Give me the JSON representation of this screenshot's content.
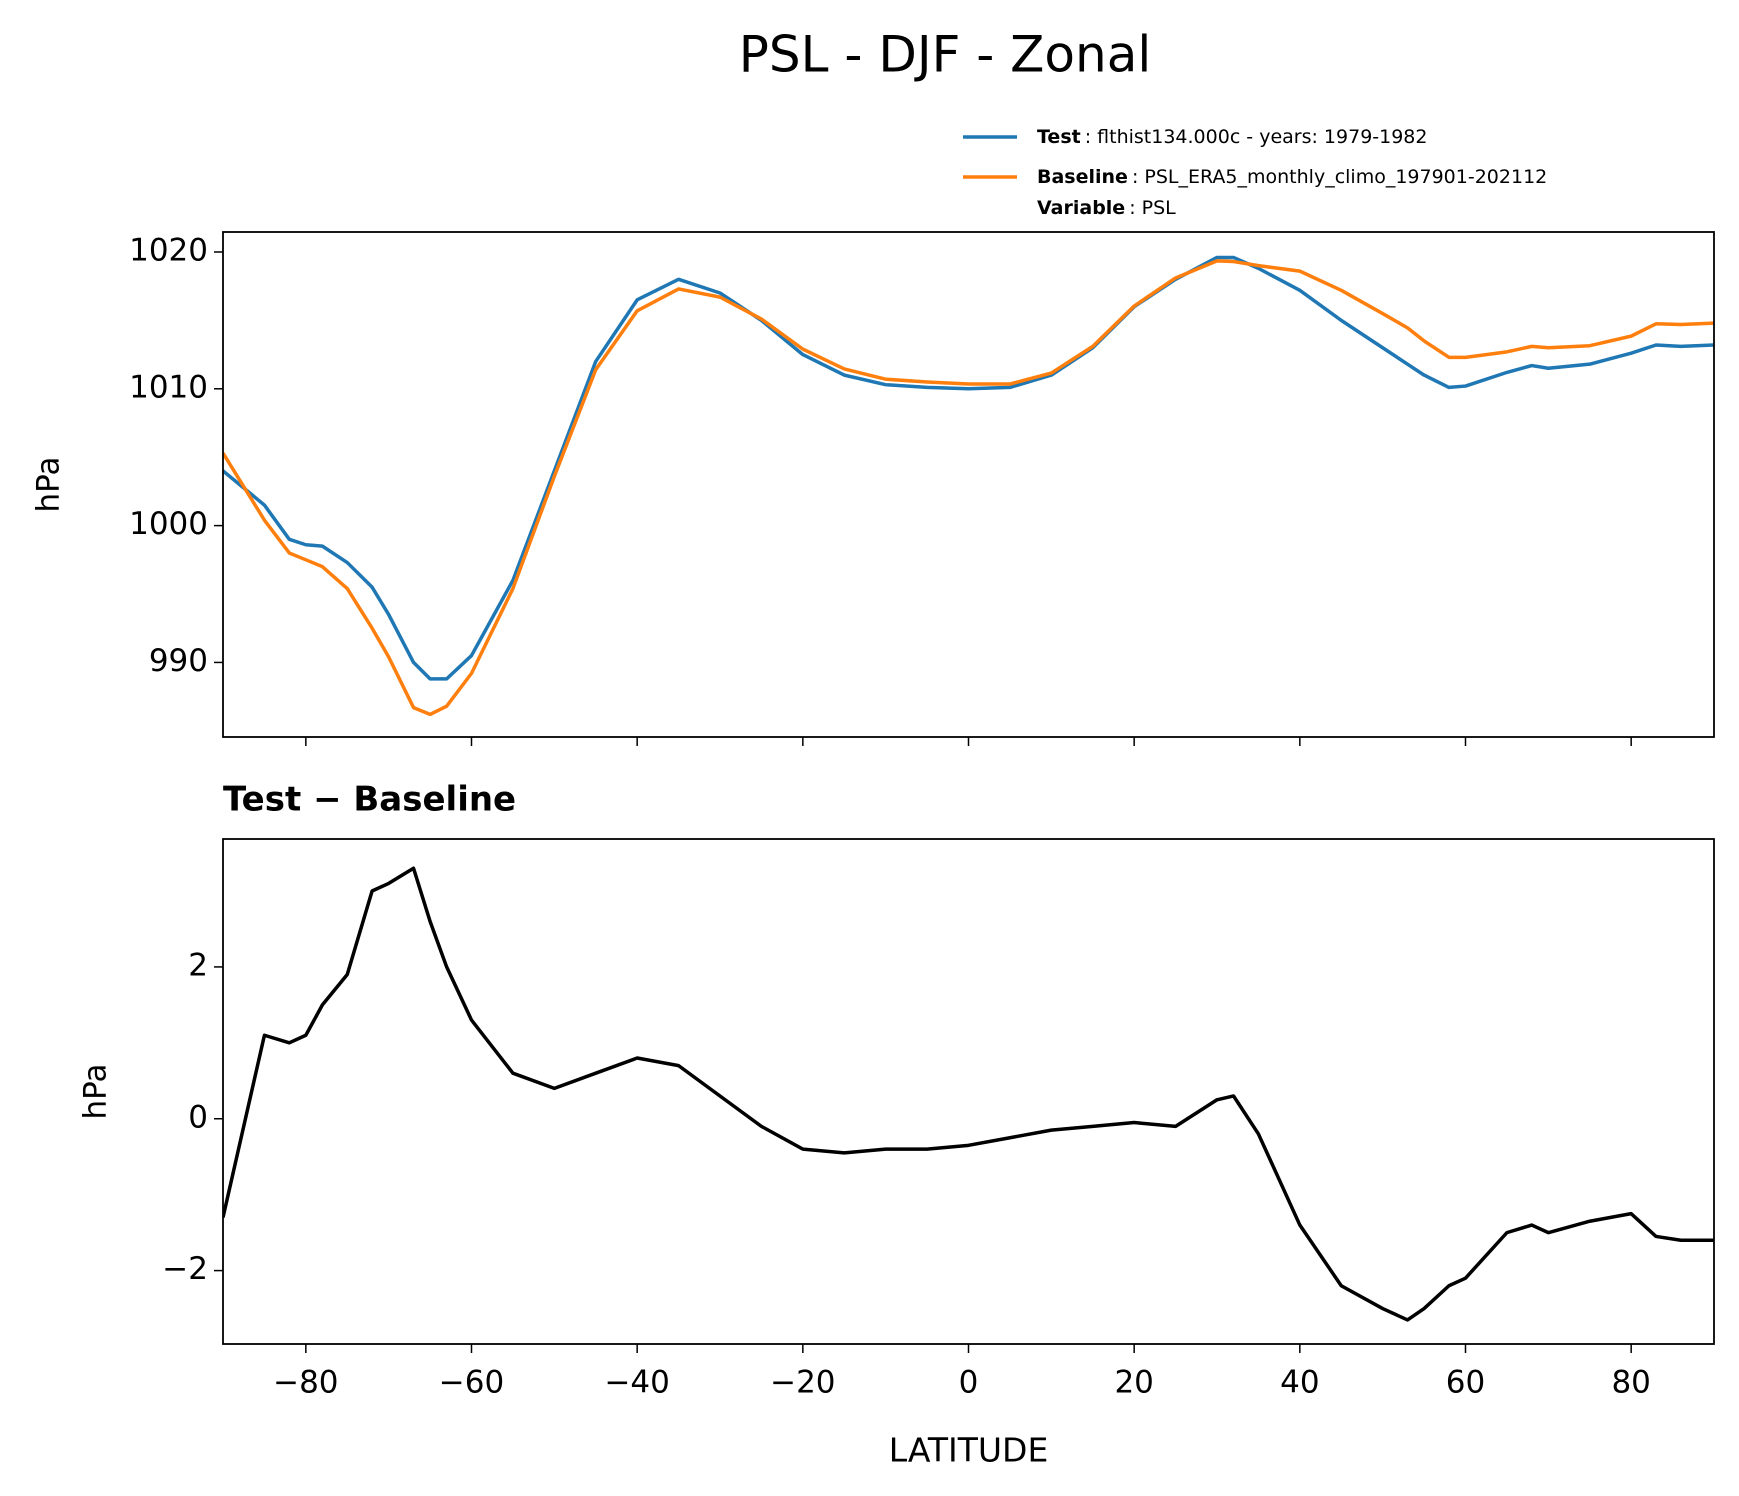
{
  "chart_data": [
    {
      "type": "line",
      "title": "PSL - DJF - Zonal",
      "ylabel": "hPa",
      "x": [
        -90,
        -85,
        -82,
        -80,
        -78,
        -75,
        -72,
        -70,
        -67,
        -65,
        -63,
        -60,
        -55,
        -50,
        -45,
        -40,
        -35,
        -30,
        -25,
        -20,
        -15,
        -10,
        -5,
        0,
        5,
        10,
        15,
        20,
        25,
        30,
        32,
        35,
        40,
        45,
        50,
        53,
        55,
        58,
        60,
        65,
        68,
        70,
        75,
        80,
        83,
        86,
        90
      ],
      "series": [
        {
          "name": "Test",
          "description": ": flthist134.000c - years: 1979-1982",
          "color": "#1f77b4",
          "values": [
            1004,
            1001.5,
            999,
            998.6,
            998.5,
            997.3,
            995.5,
            993.5,
            990,
            988.8,
            988.8,
            990.5,
            996,
            1004,
            1012,
            1016.5,
            1018,
            1017,
            1015,
            1012.5,
            1011,
            1010.3,
            1010.1,
            1010,
            1010.1,
            1011,
            1013,
            1016,
            1018,
            1019.6,
            1019.6,
            1018.8,
            1017.2,
            1015,
            1013,
            1011.8,
            1011,
            1010.1,
            1010.2,
            1011.2,
            1011.7,
            1011.5,
            1011.8,
            1012.6,
            1013.2,
            1013.1,
            1013.2
          ]
        },
        {
          "name": "Baseline",
          "description": ": PSL_ERA5_monthly_climo_197901-202112",
          "color": "#ff7f0e",
          "values": [
            1005.3,
            1000.4,
            998,
            997.5,
            997,
            995.4,
            992.5,
            990.4,
            986.7,
            986.2,
            986.8,
            989.2,
            995.4,
            1003.6,
            1011.4,
            1015.7,
            1017.3,
            1016.7,
            1015.1,
            1012.9,
            1011.45,
            1010.7,
            1010.5,
            1010.35,
            1010.35,
            1011.15,
            1013.1,
            1016.05,
            1018.1,
            1019.35,
            1019.3,
            1019,
            1018.6,
            1017.2,
            1015.5,
            1014.45,
            1013.5,
            1012.3,
            1012.3,
            1012.7,
            1013.1,
            1013,
            1013.15,
            1013.85,
            1014.75,
            1014.7,
            1014.8
          ]
        }
      ],
      "legend_note": {
        "label": "Variable",
        "text": ": PSL"
      },
      "xlim": [
        -90,
        90
      ],
      "ylim": [
        984.55,
        1021.46
      ],
      "yticks": [
        990,
        1000,
        1010,
        1020
      ]
    },
    {
      "type": "line",
      "title": "Test − Baseline",
      "ylabel": "hPa",
      "xlabel": "LATITUDE",
      "x": [
        -90,
        -85,
        -82,
        -80,
        -78,
        -75,
        -72,
        -70,
        -67,
        -65,
        -63,
        -60,
        -55,
        -50,
        -45,
        -40,
        -35,
        -30,
        -25,
        -20,
        -15,
        -10,
        -5,
        0,
        5,
        10,
        15,
        20,
        25,
        30,
        32,
        35,
        40,
        45,
        50,
        53,
        55,
        58,
        60,
        65,
        68,
        70,
        75,
        80,
        83,
        86,
        90
      ],
      "series": [
        {
          "color": "#000000",
          "values": [
            -1.3,
            1.1,
            1.0,
            1.1,
            1.5,
            1.9,
            3.0,
            3.1,
            3.3,
            2.6,
            2.0,
            1.3,
            0.6,
            0.4,
            0.6,
            0.8,
            0.7,
            0.3,
            -0.1,
            -0.4,
            -0.45,
            -0.4,
            -0.4,
            -0.35,
            -0.25,
            -0.15,
            -0.1,
            -0.05,
            -0.1,
            0.25,
            0.3,
            -0.2,
            -1.4,
            -2.2,
            -2.5,
            -2.65,
            -2.5,
            -2.2,
            -2.1,
            -1.5,
            -1.4,
            -1.5,
            -1.35,
            -1.25,
            -1.55,
            -1.6,
            -1.6
          ]
        }
      ],
      "xlim": [
        -90,
        90
      ],
      "ylim": [
        -2.967,
        3.685
      ],
      "xticks": [
        {
          "value": -80,
          "label": "−80"
        },
        {
          "value": -60,
          "label": "−60"
        },
        {
          "value": -40,
          "label": "−40"
        },
        {
          "value": -20,
          "label": "−20"
        },
        0,
        20,
        40,
        60,
        80
      ],
      "yticks": [
        {
          "value": -2,
          "label": "−2"
        },
        0,
        2
      ]
    }
  ]
}
